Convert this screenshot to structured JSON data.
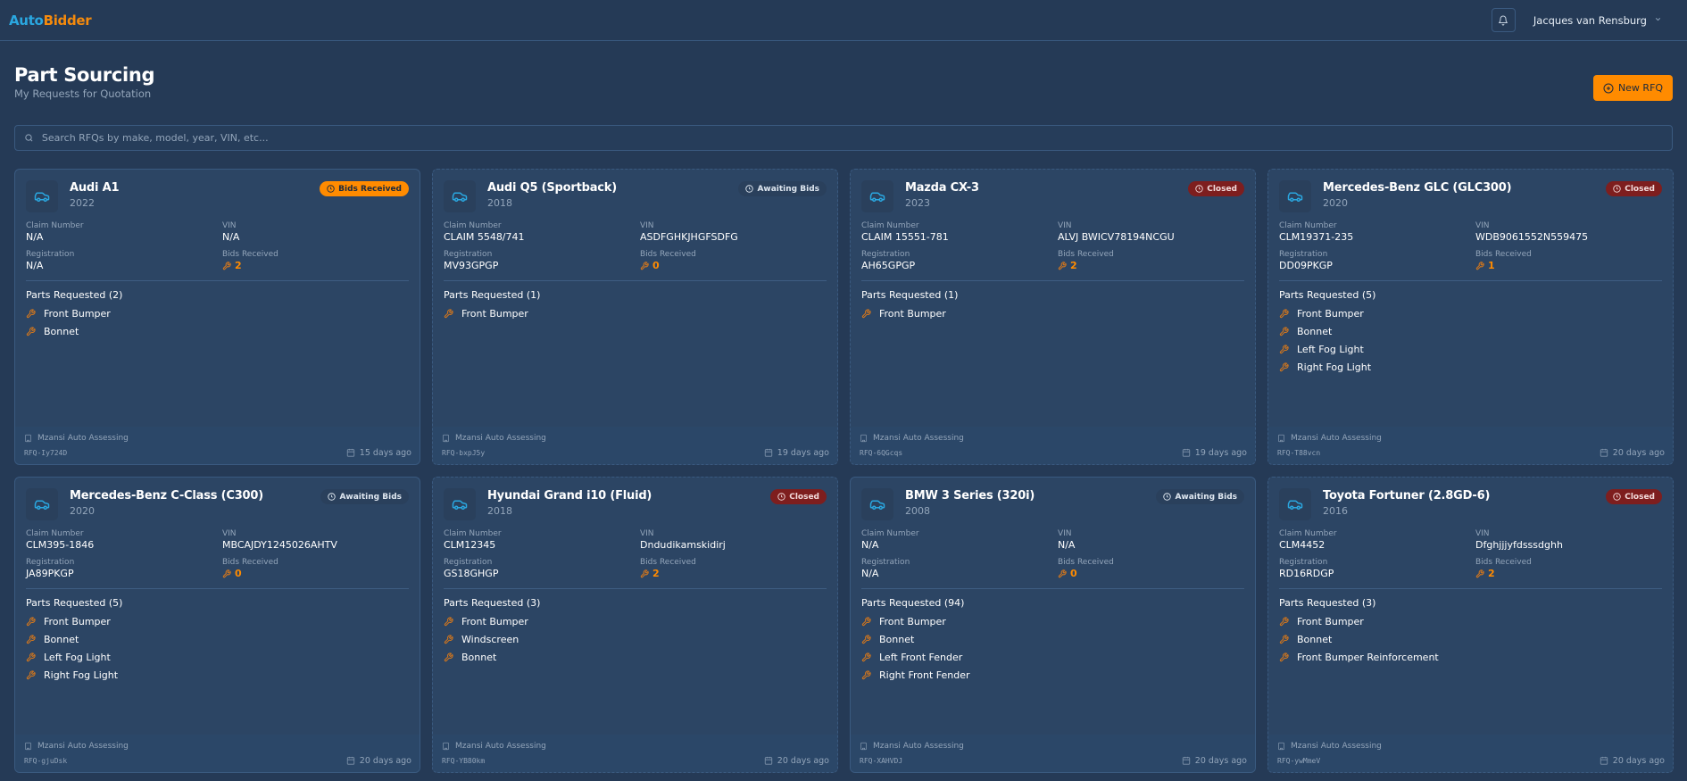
{
  "app": {
    "logo_part1": "Auto",
    "logo_part2": "Bidder",
    "user_name": "Jacques van Rensburg",
    "colors": {
      "accent": "#ff8b00",
      "brand_blue": "#2aa7e0",
      "closed": "#7e1e1e",
      "background": "#253a56"
    }
  },
  "header": {
    "title": "Part Sourcing",
    "subtitle": "My Requests for Quotation",
    "new_button": "New RFQ"
  },
  "search": {
    "placeholder": "Search RFQs by make, model, year, VIN, etc..."
  },
  "labels": {
    "claim": "Claim Number",
    "vin": "VIN",
    "registration": "Registration",
    "bids": "Bids Received"
  },
  "cards": [
    {
      "name": "Audi A1",
      "year": "2022",
      "status": "Bids Received",
      "status_type": "bids",
      "claim": "N/A",
      "vin": "N/A",
      "registration": "N/A",
      "bids": "2",
      "parts_title": "Parts Requested (2)",
      "parts": [
        "Front Bumper",
        "Bonnet"
      ],
      "company": "Mzansi Auto Assessing",
      "rfq": "RFQ-Iy724D",
      "date": "15 days ago"
    },
    {
      "name": "Audi Q5 (Sportback)",
      "year": "2018",
      "status": "Awaiting Bids",
      "status_type": "awaiting",
      "claim": "CLAIM 5548/741",
      "vin": "ASDFGHKJHGFSDFG",
      "registration": "MV93GPGP",
      "bids": "0",
      "parts_title": "Parts Requested (1)",
      "parts": [
        "Front Bumper"
      ],
      "company": "Mzansi Auto Assessing",
      "rfq": "RFQ-bxpJ5y",
      "date": "19 days ago"
    },
    {
      "name": "Mazda CX-3",
      "year": "2023",
      "status": "Closed",
      "status_type": "closed",
      "claim": "CLAIM 15551-781",
      "vin": "ALVJ BWICV78194NCGU",
      "registration": "AH65GPGP",
      "bids": "2",
      "parts_title": "Parts Requested (1)",
      "parts": [
        "Front Bumper"
      ],
      "company": "Mzansi Auto Assessing",
      "rfq": "RFQ-6QGcqs",
      "date": "19 days ago"
    },
    {
      "name": "Mercedes-Benz GLC (GLC300)",
      "year": "2020",
      "status": "Closed",
      "status_type": "closed",
      "claim": "CLM19371-235",
      "vin": "WDB9061552N559475",
      "registration": "DD09PKGP",
      "bids": "1",
      "parts_title": "Parts Requested (5)",
      "parts": [
        "Front Bumper",
        "Bonnet",
        "Left Fog Light",
        "Right Fog Light"
      ],
      "company": "Mzansi Auto Assessing",
      "rfq": "RFQ-T88vcn",
      "date": "20 days ago"
    },
    {
      "name": "Mercedes-Benz C-Class (C300)",
      "year": "2020",
      "status": "Awaiting Bids",
      "status_type": "awaiting",
      "claim": "CLM395-1846",
      "vin": "MBCAJDY1245026AHTV",
      "registration": "JA89PKGP",
      "bids": "0",
      "parts_title": "Parts Requested (5)",
      "parts": [
        "Front Bumper",
        "Bonnet",
        "Left Fog Light",
        "Right Fog Light"
      ],
      "company": "Mzansi Auto Assessing",
      "rfq": "RFQ-gjuDsk",
      "date": "20 days ago"
    },
    {
      "name": "Hyundai Grand i10 (Fluid)",
      "year": "2018",
      "status": "Closed",
      "status_type": "closed",
      "claim": "CLM12345",
      "vin": "Dndudikamskidirj",
      "registration": "GS18GHGP",
      "bids": "2",
      "parts_title": "Parts Requested (3)",
      "parts": [
        "Front Bumper",
        "Windscreen",
        "Bonnet"
      ],
      "company": "Mzansi Auto Assessing",
      "rfq": "RFQ-YB80km",
      "date": "20 days ago"
    },
    {
      "name": "BMW 3 Series (320i)",
      "year": "2008",
      "status": "Awaiting Bids",
      "status_type": "awaiting",
      "claim": "N/A",
      "vin": "N/A",
      "registration": "N/A",
      "bids": "0",
      "parts_title": "Parts Requested (94)",
      "parts": [
        "Front Bumper",
        "Bonnet",
        "Left Front Fender",
        "Right Front Fender"
      ],
      "company": "Mzansi Auto Assessing",
      "rfq": "RFQ-XAHVDJ",
      "date": "20 days ago"
    },
    {
      "name": "Toyota Fortuner (2.8GD-6)",
      "year": "2016",
      "status": "Closed",
      "status_type": "closed",
      "claim": "CLM4452",
      "vin": "Dfghjjjyfdsssdghh",
      "registration": "RD16RDGP",
      "bids": "2",
      "parts_title": "Parts Requested (3)",
      "parts": [
        "Front Bumper",
        "Bonnet",
        "Front Bumper Reinforcement"
      ],
      "company": "Mzansi Auto Assessing",
      "rfq": "RFQ-ywMmeV",
      "date": "20 days ago"
    }
  ]
}
